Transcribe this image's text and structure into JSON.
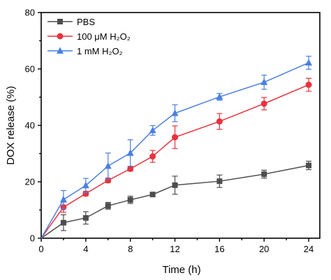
{
  "chart_data": {
    "type": "line",
    "xlabel": "Time (h)",
    "ylabel": "DOX release (%)",
    "xlim": [
      0,
      25
    ],
    "ylim": [
      0,
      80
    ],
    "xticks": [
      0,
      4,
      8,
      12,
      16,
      20,
      24
    ],
    "yticks": [
      0,
      20,
      40,
      60,
      80
    ],
    "legend_position": "top-left",
    "grid": false,
    "x": [
      0,
      2,
      4,
      6,
      8,
      10,
      12,
      16,
      20,
      24
    ],
    "series": [
      {
        "name": "PBS",
        "color": "#4d4d4d",
        "marker": "square",
        "values": [
          0,
          5.5,
          7.2,
          11.5,
          13.6,
          15.5,
          18.8,
          20.2,
          22.7,
          25.8
        ],
        "errors": [
          0,
          2.8,
          2.2,
          1.2,
          1.3,
          0.6,
          3.2,
          2.2,
          1.4,
          1.5
        ]
      },
      {
        "name": "100 μM H₂O₂",
        "color": "#e8323c",
        "marker": "circle",
        "values": [
          0,
          11.0,
          15.8,
          20.5,
          24.6,
          29.0,
          35.8,
          41.4,
          47.7,
          54.4
        ],
        "errors": [
          0,
          1.8,
          0.8,
          0.8,
          0.8,
          2.1,
          4.0,
          2.8,
          2.2,
          2.3
        ]
      },
      {
        "name": "1 mM H₂O₂",
        "color": "#4a7fe0",
        "marker": "triangle",
        "values": [
          0,
          13.7,
          18.7,
          25.6,
          30.2,
          38.2,
          44.3,
          50.1,
          55.3,
          62.2
        ],
        "errors": [
          0,
          3.2,
          2.5,
          4.6,
          4.7,
          1.7,
          3.0,
          1.2,
          2.5,
          2.3
        ]
      }
    ]
  }
}
